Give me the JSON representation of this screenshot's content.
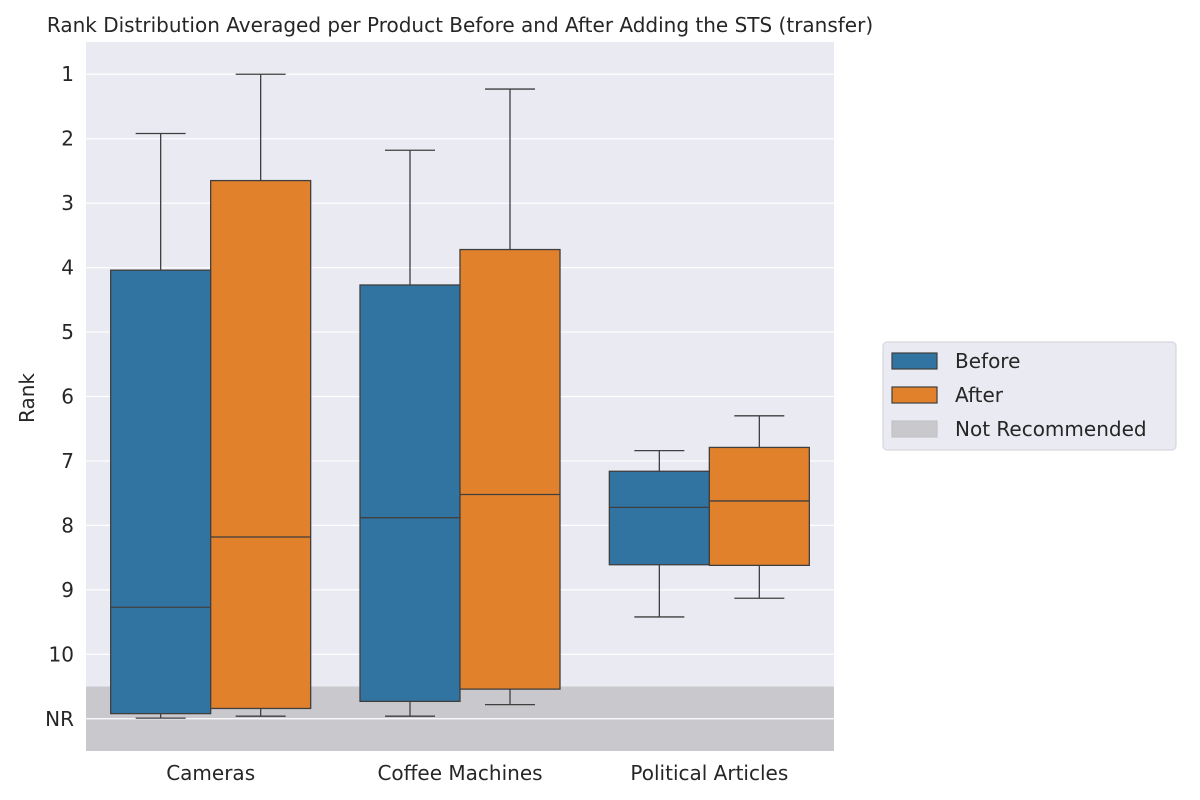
{
  "chart_data": {
    "type": "box",
    "title": "Rank Distribution Averaged per Product Before and After Adding the STS (transfer)",
    "xlabel": "",
    "ylabel": "Rank",
    "y_inverted": true,
    "ylim": [
      11.5,
      0.5
    ],
    "y_ticks": [
      1,
      2,
      3,
      4,
      5,
      6,
      7,
      8,
      9,
      10,
      11
    ],
    "y_tick_labels": [
      "1",
      "2",
      "3",
      "4",
      "5",
      "6",
      "7",
      "8",
      "9",
      "10",
      "NR"
    ],
    "grid": true,
    "background": "#eaeaf2",
    "not_recommended_band": {
      "label": "Not Recommended",
      "from": 10.5,
      "to": 11.5,
      "color": "#c9c8cd"
    },
    "categories": [
      "Cameras",
      "Coffee Machines",
      "Political Articles"
    ],
    "series": [
      {
        "name": "Before",
        "color": "#3274a1",
        "boxes": [
          {
            "whisker_low": 1.92,
            "q1": 4.04,
            "median": 9.27,
            "q3": 10.92,
            "whisker_high": 10.99
          },
          {
            "whisker_low": 2.18,
            "q1": 4.27,
            "median": 7.88,
            "q3": 10.73,
            "whisker_high": 10.96
          },
          {
            "whisker_low": 6.84,
            "q1": 7.16,
            "median": 7.72,
            "q3": 8.61,
            "whisker_high": 9.42
          }
        ]
      },
      {
        "name": "After",
        "color": "#e1812c",
        "boxes": [
          {
            "whisker_low": 1.0,
            "q1": 2.65,
            "median": 8.18,
            "q3": 10.84,
            "whisker_high": 10.96
          },
          {
            "whisker_low": 1.23,
            "q1": 3.72,
            "median": 7.52,
            "q3": 10.54,
            "whisker_high": 10.78
          },
          {
            "whisker_low": 6.3,
            "q1": 6.79,
            "median": 7.62,
            "q3": 8.62,
            "whisker_high": 9.13
          }
        ]
      }
    ],
    "legend": {
      "position": "right",
      "entries": [
        {
          "label": "Before",
          "color": "#3274a1"
        },
        {
          "label": "After",
          "color": "#e1812c"
        },
        {
          "label": "Not Recommended",
          "color": "#c9c8cd"
        }
      ]
    }
  }
}
